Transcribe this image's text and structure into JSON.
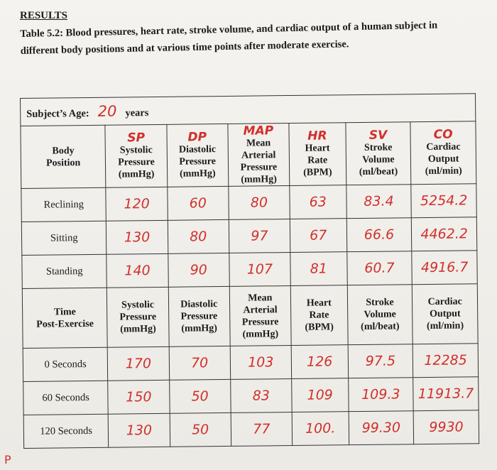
{
  "header": {
    "title": "RESULTS",
    "caption": "Table 5.2: Blood pressures, heart rate, stroke volume, and cardiac output of a human subject in different body positions and at various time points after moderate exercise."
  },
  "subject": {
    "label": "Subject’s Age:",
    "age": "20",
    "unit": "years"
  },
  "table1": {
    "columns": [
      {
        "label": "Body\nPosition"
      },
      {
        "abbr": "SP",
        "label": "Systolic\nPressure\n(mmHg)"
      },
      {
        "abbr": "DP",
        "label": "Diastolic\nPressure\n(mmHg)"
      },
      {
        "abbr": "MAP",
        "label": "Mean\nArterial\nPressure\n(mmHg)"
      },
      {
        "abbr": "HR",
        "label": "Heart\nRate\n(BPM)"
      },
      {
        "abbr": "SV",
        "label": "Stroke\nVolume\n(ml/beat)"
      },
      {
        "abbr": "CO",
        "label": "Cardiac\nOutput\n(ml/min)"
      }
    ],
    "rows": [
      {
        "label": "Reclining",
        "values": [
          "120",
          "60",
          "80",
          "63",
          "83.4",
          "5254.2"
        ]
      },
      {
        "label": "Sitting",
        "values": [
          "130",
          "80",
          "97",
          "67",
          "66.6",
          "4462.2"
        ]
      },
      {
        "label": "Standing",
        "values": [
          "140",
          "90",
          "107",
          "81",
          "60.7",
          "4916.7"
        ]
      }
    ]
  },
  "table2": {
    "columns": [
      {
        "label": "Time\nPost-Exercise"
      },
      {
        "label": "Systolic\nPressure\n(mmHg)"
      },
      {
        "label": "Diastolic\nPressure\n(mmHg)"
      },
      {
        "label": "Mean\nArterial\nPressure\n(mmHg)"
      },
      {
        "label": "Heart\nRate\n(BPM)"
      },
      {
        "label": "Stroke\nVolume\n(ml/beat)"
      },
      {
        "label": "Cardiac\nOutput\n(ml/min)"
      }
    ],
    "rows": [
      {
        "label": "0 Seconds",
        "values": [
          "170",
          "70",
          "103",
          "126",
          "97.5",
          "12285"
        ]
      },
      {
        "label": "60 Seconds",
        "values": [
          "150",
          "50",
          "83",
          "109",
          "109.3",
          "11913.7"
        ]
      },
      {
        "label": "120 Seconds",
        "values": [
          "130",
          "50",
          "77",
          "100.",
          "99.30",
          "9930"
        ]
      }
    ]
  },
  "margin_mark": "P"
}
